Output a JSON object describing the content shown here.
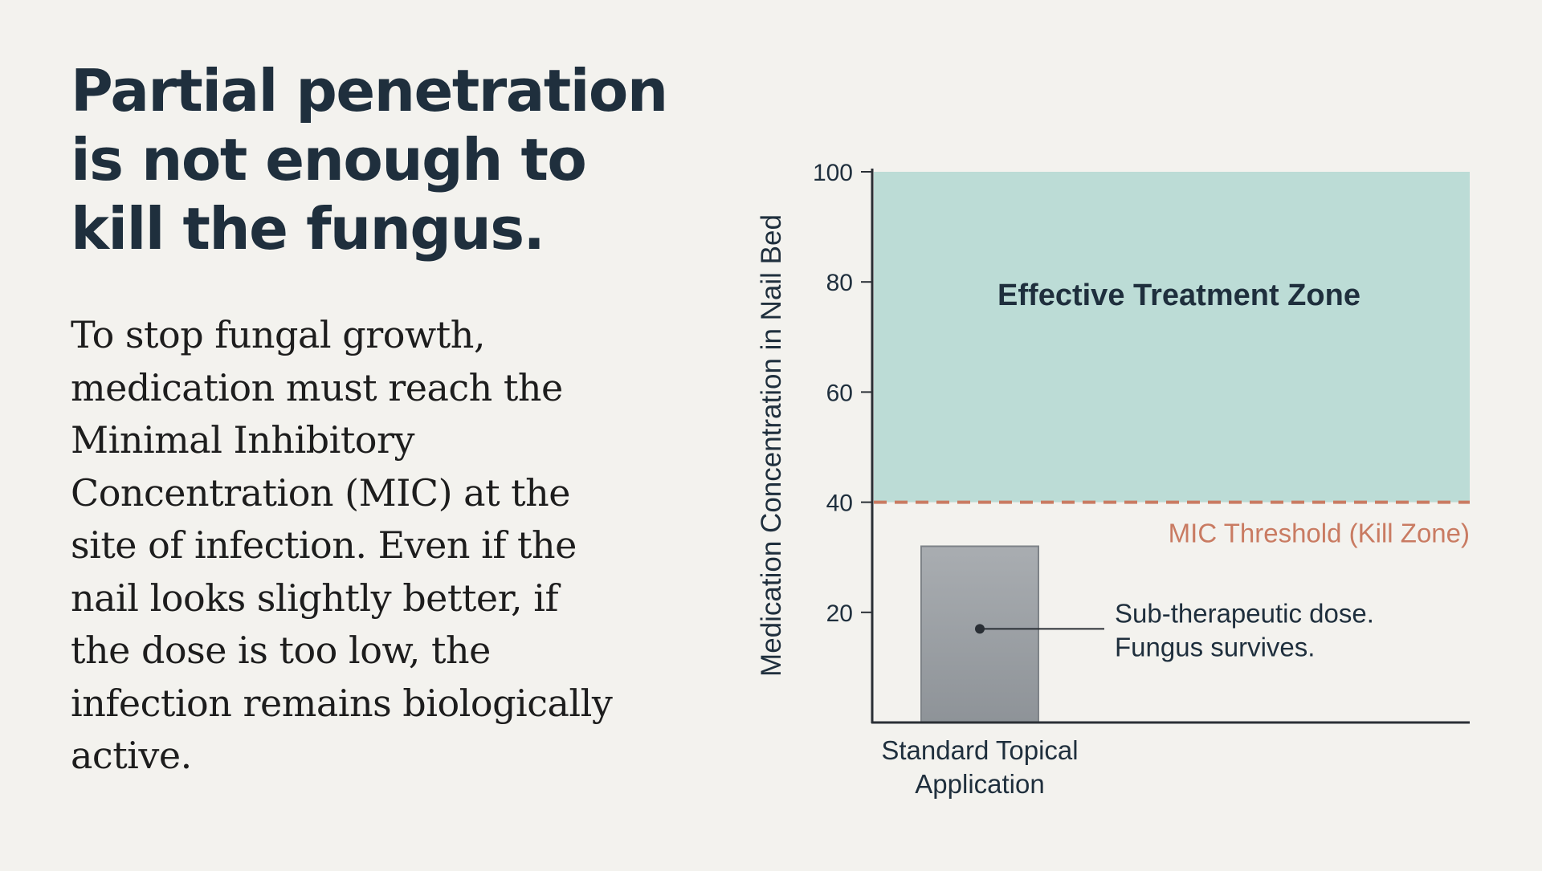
{
  "headline": {
    "lines": [
      "Partial penetration",
      "is not enough to",
      "kill the fungus."
    ]
  },
  "body": {
    "lines": [
      "To stop fungal growth,",
      "medication must reach the",
      "Minimal Inhibitory",
      "Concentration (MIC) at the",
      "site of infection. Even if the",
      "nail looks slightly better, if",
      "the dose is too low, the",
      "infection remains biologically",
      "active."
    ]
  },
  "chart_data": {
    "type": "bar",
    "categories": [
      [
        "Standard Topical",
        "Application"
      ]
    ],
    "values": [
      32
    ],
    "ylabel": "Medication Concentration in Nail Bed",
    "xlabel": "",
    "ylim": [
      0,
      100
    ],
    "yticks": [
      20,
      40,
      60,
      80,
      100
    ],
    "grid": false,
    "threshold": {
      "value": 40,
      "label": "MIC Threshold (Kill Zone)",
      "color": "#c97b62"
    },
    "zone": {
      "from": 40,
      "to": 100,
      "label": "Effective Treatment Zone",
      "color": "#bcdcd6"
    },
    "annotation": {
      "target": 0,
      "value": 17,
      "lines": [
        "Sub-therapeutic dose.",
        "Fungus survives."
      ]
    },
    "colors": {
      "bar": "#9ea3a8",
      "axis": "#2a2f35",
      "text": "#1f2f3d"
    }
  }
}
